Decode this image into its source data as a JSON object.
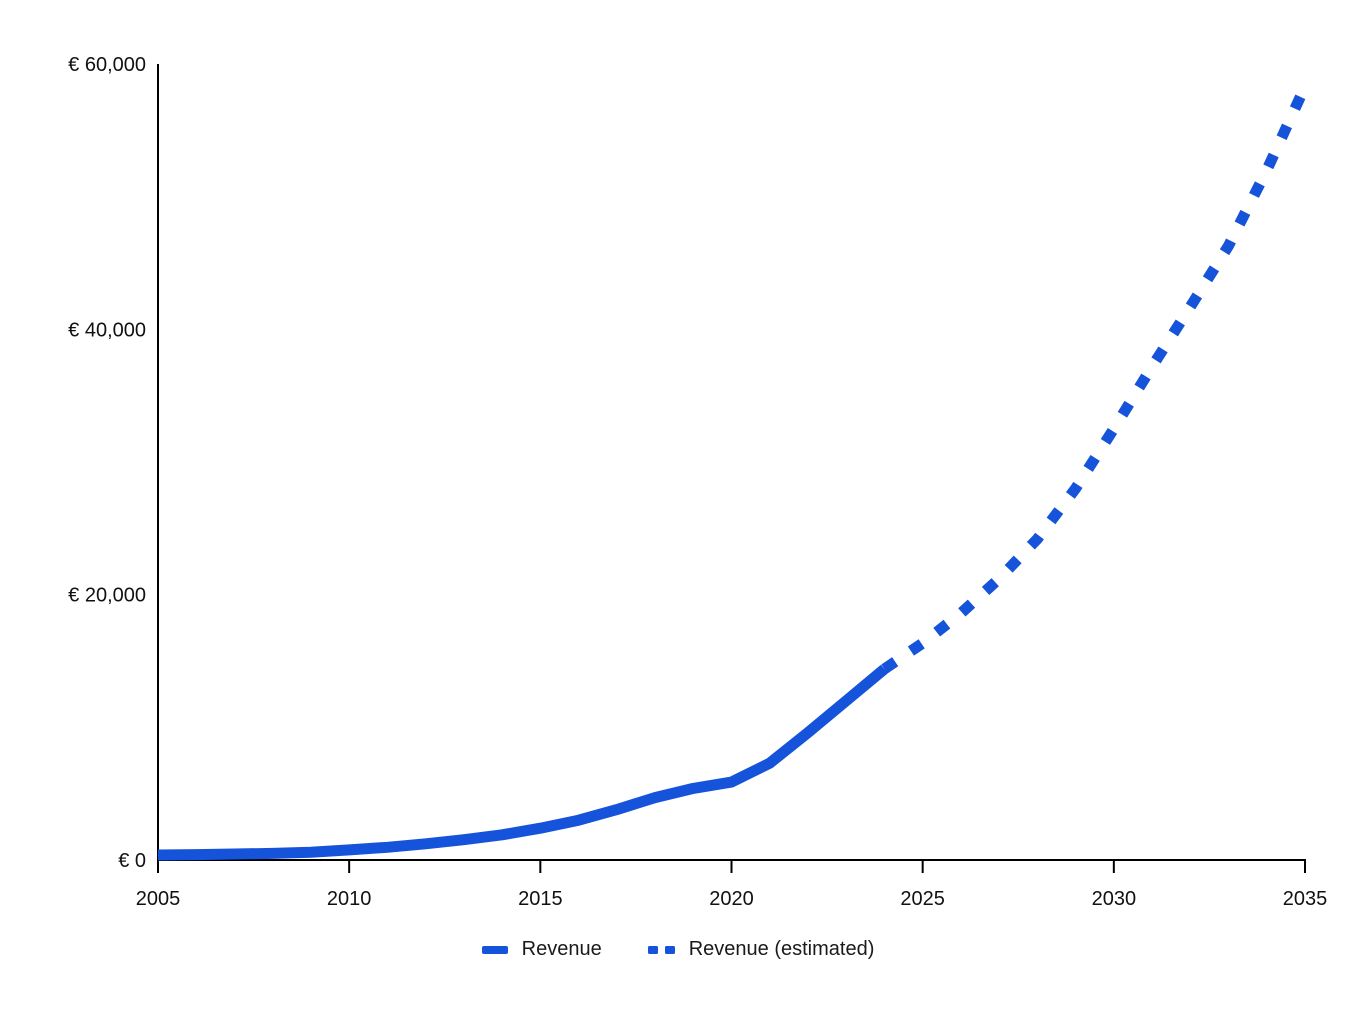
{
  "chart_data": {
    "type": "line",
    "title": "",
    "xlabel": "",
    "ylabel": "",
    "accent_color": "#1553db",
    "axis_color": "#000000",
    "text_color": "#111111",
    "line_width": 11,
    "grid": false,
    "legend_position": "bottom-center",
    "x_axis": {
      "min": 2005,
      "max": 2035,
      "ticks": [
        2005,
        2010,
        2015,
        2020,
        2025,
        2030,
        2035
      ],
      "tick_labels": [
        "2005",
        "2010",
        "2015",
        "2020",
        "2025",
        "2030",
        "2035"
      ]
    },
    "y_axis": {
      "min": 0,
      "max": 60000,
      "ticks": [
        0,
        20000,
        40000,
        60000
      ],
      "tick_labels": [
        "€ 0",
        "€ 20,000",
        "€ 40,000",
        "€ 60,000"
      ]
    },
    "series": [
      {
        "name": "Revenue",
        "style": "solid",
        "color": "#1553db",
        "points": [
          [
            2005,
            380
          ],
          [
            2006,
            410
          ],
          [
            2007,
            450
          ],
          [
            2008,
            500
          ],
          [
            2009,
            590
          ],
          [
            2010,
            760
          ],
          [
            2011,
            960
          ],
          [
            2012,
            1220
          ],
          [
            2013,
            1530
          ],
          [
            2014,
            1900
          ],
          [
            2015,
            2400
          ],
          [
            2016,
            3000
          ],
          [
            2017,
            3800
          ],
          [
            2018,
            4700
          ],
          [
            2019,
            5400
          ],
          [
            2020,
            5870
          ],
          [
            2021,
            7300
          ],
          [
            2022,
            9600
          ],
          [
            2023,
            12000
          ],
          [
            2024,
            14400
          ]
        ]
      },
      {
        "name": "Revenue (estimated)",
        "style": "dashed",
        "color": "#1553db",
        "points": [
          [
            2024,
            14400
          ],
          [
            2025,
            16350
          ],
          [
            2026,
            18600
          ],
          [
            2027,
            21200
          ],
          [
            2028,
            24200
          ],
          [
            2029,
            28000
          ],
          [
            2030,
            32500
          ],
          [
            2031,
            37200
          ],
          [
            2032,
            41700
          ],
          [
            2033,
            46300
          ],
          [
            2034,
            52000
          ],
          [
            2035,
            58300
          ]
        ]
      }
    ],
    "legend": [
      {
        "label": "Revenue",
        "style": "solid"
      },
      {
        "label": "Revenue (estimated)",
        "style": "dashed"
      }
    ]
  }
}
